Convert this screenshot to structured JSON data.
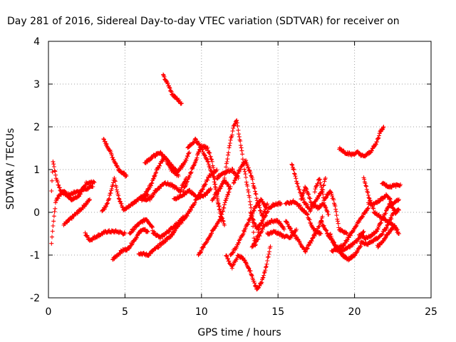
{
  "chart_data": {
    "type": "scatter",
    "title": "Day 281 of 2016, Sidereal Day-to-day VTEC variation (SDTVAR) for receiver on",
    "xlabel": "GPS time / hours",
    "ylabel": "SDTVAR / TECUs",
    "xlim": [
      0,
      25
    ],
    "ylim": [
      -2,
      4
    ],
    "xticks": [
      0,
      5,
      10,
      15,
      20,
      25
    ],
    "xtick_labels": [
      "0",
      "5",
      "10",
      "15",
      "20",
      "25"
    ],
    "yticks": [
      -2,
      -1,
      0,
      1,
      2,
      3,
      4
    ],
    "ytick_labels": [
      "-2",
      "-1",
      "0",
      "1",
      "2",
      "3",
      "4"
    ],
    "grid": true,
    "marker": "plus",
    "color": "#ff0000",
    "tracks": [
      [
        [
          0.2,
          0.5
        ],
        [
          0.3,
          1.2
        ],
        [
          0.5,
          0.8
        ],
        [
          0.8,
          0.5
        ],
        [
          1.2,
          0.4
        ],
        [
          1.6,
          0.45
        ],
        [
          2.0,
          0.5
        ],
        [
          2.5,
          0.55
        ],
        [
          2.9,
          0.6
        ]
      ],
      [
        [
          0.2,
          -0.7
        ],
        [
          0.3,
          -0.3
        ],
        [
          0.5,
          0.3
        ],
        [
          1.0,
          0.5
        ],
        [
          1.5,
          0.3
        ],
        [
          2.0,
          0.4
        ],
        [
          2.5,
          0.7
        ],
        [
          3.0,
          0.7
        ]
      ],
      [
        [
          1.0,
          -0.3
        ],
        [
          1.6,
          -0.1
        ],
        [
          2.2,
          0.1
        ],
        [
          2.7,
          0.3
        ]
      ],
      [
        [
          2.4,
          -0.5
        ],
        [
          2.7,
          -0.65
        ],
        [
          3.2,
          -0.55
        ],
        [
          3.8,
          -0.45
        ],
        [
          4.5,
          -0.45
        ],
        [
          5.0,
          -0.5
        ]
      ],
      [
        [
          3.6,
          1.7
        ],
        [
          4.0,
          1.45
        ],
        [
          4.3,
          1.2
        ],
        [
          4.6,
          1.0
        ],
        [
          5.1,
          0.85
        ]
      ],
      [
        [
          3.5,
          0.0
        ],
        [
          3.9,
          0.25
        ],
        [
          4.3,
          0.8
        ],
        [
          4.6,
          0.35
        ],
        [
          4.9,
          0.05
        ],
        [
          5.3,
          0.15
        ],
        [
          6.0,
          0.35
        ],
        [
          6.5,
          0.4
        ]
      ],
      [
        [
          4.2,
          -1.1
        ],
        [
          4.8,
          -0.9
        ],
        [
          5.2,
          -0.85
        ],
        [
          5.7,
          -0.6
        ],
        [
          6.1,
          -0.4
        ],
        [
          6.5,
          -0.45
        ]
      ],
      [
        [
          5.3,
          -0.5
        ],
        [
          5.8,
          -0.3
        ],
        [
          6.4,
          -0.15
        ],
        [
          6.8,
          -0.35
        ]
      ],
      [
        [
          5.9,
          -0.95
        ],
        [
          6.5,
          -1.0
        ],
        [
          7.0,
          -0.85
        ],
        [
          7.5,
          -0.7
        ],
        [
          8.0,
          -0.55
        ],
        [
          8.5,
          -0.3
        ]
      ],
      [
        [
          6.1,
          0.3
        ],
        [
          6.7,
          0.65
        ],
        [
          7.1,
          1.0
        ],
        [
          7.6,
          1.3
        ],
        [
          8.0,
          1.0
        ],
        [
          8.5,
          0.85
        ]
      ],
      [
        [
          6.2,
          0.3
        ],
        [
          6.6,
          0.3
        ],
        [
          7.0,
          0.5
        ],
        [
          7.6,
          0.7
        ],
        [
          8.2,
          0.6
        ],
        [
          8.6,
          0.5
        ],
        [
          9.0,
          0.8
        ]
      ],
      [
        [
          6.3,
          1.15
        ],
        [
          6.8,
          1.3
        ],
        [
          7.3,
          1.4
        ],
        [
          7.9,
          1.15
        ],
        [
          8.4,
          0.95
        ],
        [
          8.9,
          1.15
        ],
        [
          9.2,
          1.4
        ]
      ],
      [
        [
          6.8,
          -0.45
        ],
        [
          7.3,
          -0.6
        ],
        [
          7.8,
          -0.45
        ],
        [
          8.3,
          -0.3
        ],
        [
          8.9,
          -0.1
        ]
      ],
      [
        [
          7.5,
          3.2
        ],
        [
          7.8,
          3.0
        ],
        [
          8.1,
          2.75
        ],
        [
          8.4,
          2.65
        ],
        [
          8.7,
          2.55
        ]
      ],
      [
        [
          8.2,
          0.3
        ],
        [
          8.7,
          0.4
        ],
        [
          9.2,
          0.5
        ],
        [
          9.7,
          0.35
        ],
        [
          10.2,
          0.4
        ],
        [
          10.6,
          0.55
        ]
      ],
      [
        [
          8.5,
          -0.3
        ],
        [
          9.0,
          -0.1
        ],
        [
          9.5,
          0.2
        ],
        [
          10.0,
          0.5
        ],
        [
          10.5,
          0.85
        ],
        [
          11.0,
          1.0
        ]
      ],
      [
        [
          8.8,
          0.5
        ],
        [
          9.2,
          0.85
        ],
        [
          9.6,
          1.2
        ],
        [
          10.0,
          1.55
        ],
        [
          10.4,
          1.5
        ],
        [
          10.7,
          1.2
        ],
        [
          11.0,
          0.4
        ],
        [
          11.3,
          -0.2
        ]
      ],
      [
        [
          9.1,
          1.5
        ],
        [
          9.6,
          1.7
        ],
        [
          10.0,
          1.5
        ],
        [
          10.4,
          1.2
        ],
        [
          10.8,
          0.8
        ],
        [
          11.1,
          0.2
        ],
        [
          11.5,
          -0.3
        ]
      ],
      [
        [
          9.8,
          -1.0
        ],
        [
          10.3,
          -0.7
        ],
        [
          10.8,
          -0.4
        ],
        [
          11.3,
          -0.1
        ],
        [
          11.6,
          0.3
        ],
        [
          11.9,
          0.6
        ]
      ],
      [
        [
          10.7,
          0.3
        ],
        [
          11.1,
          0.5
        ],
        [
          11.5,
          0.75
        ],
        [
          11.8,
          0.6
        ]
      ],
      [
        [
          11.0,
          0.8
        ],
        [
          11.3,
          0.9
        ],
        [
          11.6,
          0.95
        ],
        [
          12.0,
          1.0
        ],
        [
          12.4,
          0.8
        ]
      ],
      [
        [
          11.5,
          0.8
        ],
        [
          11.8,
          1.5
        ],
        [
          12.1,
          2.0
        ],
        [
          12.3,
          2.15
        ],
        [
          12.6,
          1.5
        ],
        [
          12.9,
          0.8
        ],
        [
          13.2,
          0.2
        ],
        [
          13.5,
          -0.8
        ],
        [
          13.8,
          -0.3
        ]
      ],
      [
        [
          11.9,
          -1.0
        ],
        [
          12.3,
          -0.8
        ],
        [
          12.7,
          -0.5
        ],
        [
          13.1,
          -0.2
        ],
        [
          13.5,
          0.1
        ],
        [
          13.9,
          0.3
        ],
        [
          14.2,
          0.1
        ]
      ],
      [
        [
          12.1,
          0.7
        ],
        [
          12.5,
          1.0
        ],
        [
          12.9,
          1.2
        ],
        [
          13.3,
          0.8
        ],
        [
          13.7,
          0.2
        ],
        [
          14.0,
          -0.1
        ],
        [
          14.3,
          0.2
        ]
      ],
      [
        [
          11.6,
          -1.0
        ],
        [
          12.0,
          -1.3
        ],
        [
          12.4,
          -1.0
        ],
        [
          12.8,
          -1.1
        ],
        [
          13.2,
          -1.4
        ],
        [
          13.6,
          -1.8
        ],
        [
          13.9,
          -1.65
        ],
        [
          14.2,
          -1.3
        ],
        [
          14.5,
          -0.8
        ]
      ],
      [
        [
          13.2,
          0.0
        ],
        [
          13.6,
          -0.4
        ],
        [
          14.0,
          -0.2
        ],
        [
          14.4,
          0.1
        ],
        [
          14.8,
          0.2
        ],
        [
          15.2,
          0.2
        ]
      ],
      [
        [
          13.3,
          -0.8
        ],
        [
          13.7,
          -0.6
        ],
        [
          14.1,
          -0.3
        ],
        [
          14.6,
          -0.2
        ],
        [
          15.0,
          -0.2
        ],
        [
          15.4,
          -0.4
        ]
      ],
      [
        [
          14.3,
          -0.5
        ],
        [
          14.8,
          -0.45
        ],
        [
          15.3,
          -0.55
        ],
        [
          15.8,
          -0.6
        ],
        [
          16.2,
          -0.4
        ]
      ],
      [
        [
          15.5,
          -0.2
        ],
        [
          16.0,
          -0.5
        ],
        [
          16.4,
          -0.7
        ],
        [
          16.8,
          -0.9
        ],
        [
          17.2,
          -0.65
        ],
        [
          17.6,
          -0.4
        ],
        [
          17.9,
          -0.1
        ]
      ],
      [
        [
          15.5,
          0.2
        ],
        [
          16.0,
          0.25
        ],
        [
          16.4,
          0.15
        ],
        [
          16.9,
          -0.05
        ],
        [
          17.3,
          -0.4
        ],
        [
          17.8,
          -0.5
        ]
      ],
      [
        [
          15.9,
          1.15
        ],
        [
          16.3,
          0.6
        ],
        [
          16.7,
          0.25
        ],
        [
          17.1,
          0.05
        ],
        [
          17.5,
          0.3
        ],
        [
          17.9,
          0.5
        ],
        [
          18.1,
          0.8
        ]
      ],
      [
        [
          16.5,
          0.3
        ],
        [
          16.8,
          0.6
        ],
        [
          17.2,
          0.2
        ],
        [
          17.6,
          0.1
        ],
        [
          18.0,
          0.2
        ],
        [
          18.3,
          -0.05
        ]
      ],
      [
        [
          17.4,
          0.5
        ],
        [
          17.7,
          0.8
        ],
        [
          18.0,
          0.3
        ],
        [
          18.4,
          0.5
        ],
        [
          18.7,
          0.2
        ],
        [
          19.0,
          -0.4
        ],
        [
          19.5,
          -0.5
        ]
      ],
      [
        [
          17.8,
          -0.2
        ],
        [
          18.3,
          -0.55
        ],
        [
          18.8,
          -0.8
        ],
        [
          19.2,
          -0.9
        ],
        [
          19.7,
          -0.8
        ],
        [
          20.2,
          -0.65
        ],
        [
          20.6,
          -0.45
        ]
      ],
      [
        [
          18.4,
          -0.5
        ],
        [
          18.8,
          -0.85
        ],
        [
          19.2,
          -1.0
        ],
        [
          19.6,
          -1.1
        ],
        [
          20.0,
          -1.0
        ],
        [
          20.4,
          -0.8
        ]
      ],
      [
        [
          18.5,
          -0.9
        ],
        [
          18.9,
          -0.85
        ],
        [
          19.3,
          -0.75
        ],
        [
          19.7,
          -0.55
        ],
        [
          20.1,
          -0.3
        ],
        [
          20.5,
          -0.1
        ],
        [
          20.9,
          0.1
        ]
      ],
      [
        [
          19.0,
          1.5
        ],
        [
          19.4,
          1.4
        ],
        [
          19.8,
          1.35
        ],
        [
          20.2,
          1.4
        ],
        [
          20.6,
          1.3
        ],
        [
          21.0,
          1.4
        ],
        [
          21.4,
          1.6
        ],
        [
          21.7,
          1.9
        ],
        [
          21.9,
          2.0
        ]
      ],
      [
        [
          20.3,
          -0.5
        ],
        [
          20.7,
          -0.6
        ],
        [
          21.1,
          -0.55
        ],
        [
          21.5,
          -0.4
        ],
        [
          21.9,
          -0.1
        ],
        [
          22.3,
          0.2
        ],
        [
          22.7,
          0.0
        ]
      ],
      [
        [
          20.4,
          -0.7
        ],
        [
          20.8,
          -0.75
        ],
        [
          21.3,
          -0.65
        ],
        [
          21.7,
          -0.55
        ],
        [
          22.1,
          -0.35
        ],
        [
          22.5,
          -0.05
        ],
        [
          22.9,
          0.05
        ]
      ],
      [
        [
          20.6,
          0.8
        ],
        [
          20.9,
          0.4
        ],
        [
          21.3,
          0.0
        ],
        [
          21.7,
          -0.1
        ],
        [
          22.1,
          -0.2
        ],
        [
          22.5,
          -0.3
        ],
        [
          22.9,
          -0.5
        ]
      ],
      [
        [
          20.9,
          0.2
        ],
        [
          21.3,
          0.2
        ],
        [
          21.7,
          0.3
        ],
        [
          22.1,
          0.4
        ],
        [
          22.5,
          0.2
        ],
        [
          22.9,
          0.3
        ]
      ],
      [
        [
          21.8,
          0.7
        ],
        [
          22.2,
          0.6
        ],
        [
          22.6,
          0.62
        ],
        [
          23.0,
          0.65
        ]
      ],
      [
        [
          21.5,
          -0.8
        ],
        [
          21.9,
          -0.65
        ],
        [
          22.3,
          -0.45
        ],
        [
          22.6,
          -0.3
        ],
        [
          22.9,
          -0.5
        ]
      ]
    ]
  }
}
